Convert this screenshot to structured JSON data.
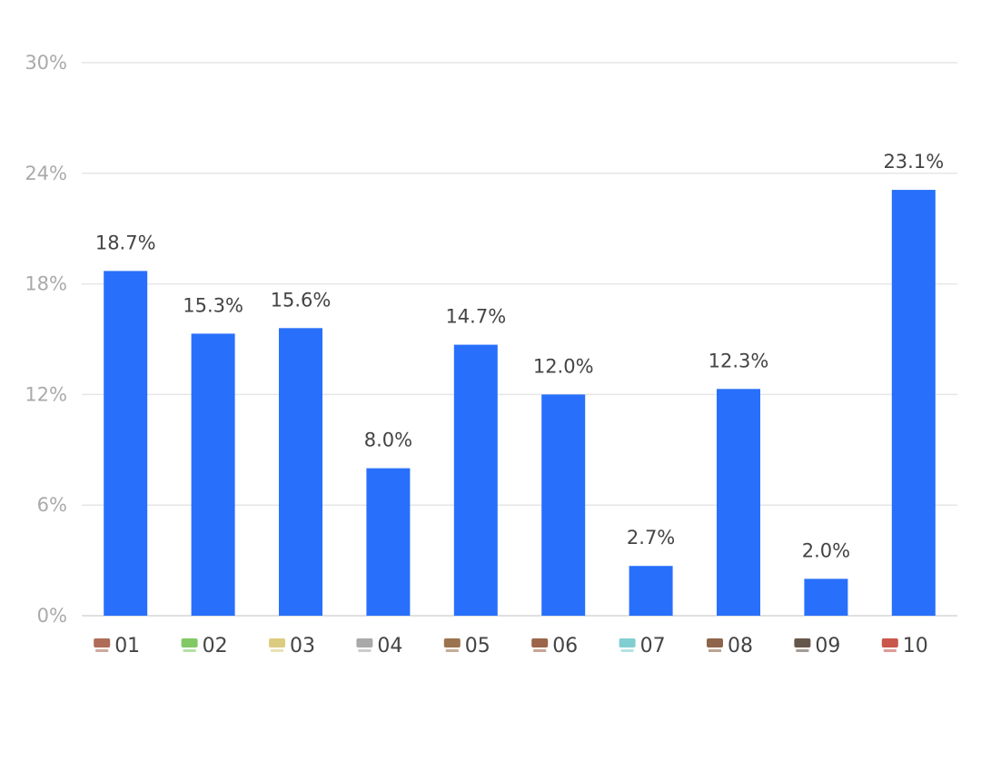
{
  "chart_data": {
    "type": "bar",
    "title": "",
    "xlabel": "",
    "ylabel": "",
    "ylim": [
      0,
      30
    ],
    "yticks": [
      "0%",
      "6%",
      "12%",
      "18%",
      "24%",
      "30%"
    ],
    "ytick_values": [
      0,
      6,
      12,
      18,
      24,
      30
    ],
    "grid": true,
    "categories": [
      "01",
      "02",
      "03",
      "04",
      "05",
      "06",
      "07",
      "08",
      "09",
      "10"
    ],
    "category_icons": [
      "brand-logo-icon",
      "brand-logo-icon",
      "brand-logo-icon",
      "brand-logo-icon",
      "brand-logo-icon",
      "brand-logo-icon",
      "brand-logo-icon",
      "brand-logo-icon",
      "brand-logo-icon",
      "brand-logo-icon"
    ],
    "icon_colors": [
      "#a0523c",
      "#6cc04a",
      "#d6c36a",
      "#9a9a9a",
      "#8a5a2e",
      "#8b4a2a",
      "#6ac6c9",
      "#7a4a2a",
      "#4a3a2a",
      "#c0392b"
    ],
    "values": [
      18.7,
      15.3,
      15.6,
      8.0,
      14.7,
      12.0,
      2.7,
      12.3,
      2.0,
      23.1
    ],
    "data_labels": [
      "18.7%",
      "15.3%",
      "15.6%",
      "8.0%",
      "14.7%",
      "12.0%",
      "2.7%",
      "12.3%",
      "2.0%",
      "23.1%"
    ],
    "bar_color": "#2870fb",
    "legend": "none"
  }
}
